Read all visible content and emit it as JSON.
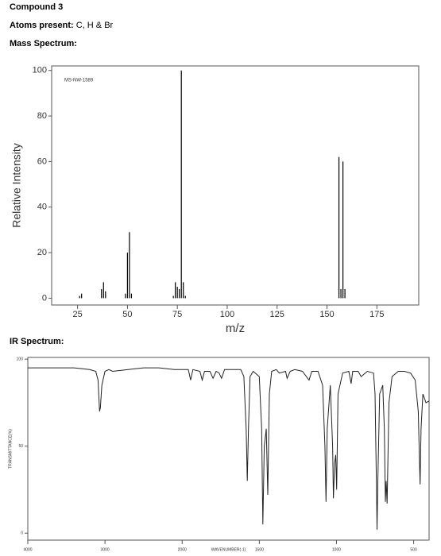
{
  "header": {
    "title": "Compound 3",
    "atoms_label": "Atoms present:",
    "atoms": "C, H & Br",
    "ms_label": "Mass Spectrum:",
    "ir_label": "IR Spectrum:"
  },
  "chart_data": [
    {
      "type": "bar",
      "annotation": "MS-NW-1589",
      "xlabel": "m/z",
      "ylabel": "Relative Intensity",
      "color": "#000000",
      "x": [
        26,
        27,
        37,
        38,
        39,
        49,
        50,
        51,
        52,
        73,
        74,
        75,
        76,
        77,
        78,
        79,
        156,
        157,
        158,
        159
      ],
      "values": [
        1,
        2,
        4,
        7,
        3,
        2,
        20,
        29,
        2,
        1,
        7,
        5,
        4,
        100,
        7,
        1,
        62,
        4,
        60,
        4
      ],
      "xlim": [
        12,
        196
      ],
      "xticks": [
        25,
        50,
        75,
        100,
        125,
        150,
        175
      ],
      "ylim": [
        -3,
        102
      ],
      "yticks": [
        0,
        20,
        40,
        60,
        80,
        100
      ]
    },
    {
      "type": "line",
      "xlabel": "WAVENUMBER(-1)",
      "ylabel": "TRANSMITTANCE(%)",
      "color": "#222222",
      "x": [
        4000,
        3800,
        3600,
        3400,
        3200,
        3120,
        3090,
        3070,
        3060,
        3040,
        3000,
        2950,
        2900,
        2700,
        2500,
        2300,
        2100,
        2000,
        1960,
        1945,
        1930,
        1885,
        1870,
        1855,
        1820,
        1800,
        1780,
        1760,
        1745,
        1725,
        1700,
        1620,
        1600,
        1585,
        1578,
        1570,
        1560,
        1540,
        1500,
        1485,
        1477,
        1468,
        1455,
        1445,
        1435,
        1420,
        1390,
        1370,
        1330,
        1320,
        1300,
        1270,
        1220,
        1178,
        1160,
        1120,
        1090,
        1075,
        1068,
        1060,
        1040,
        1025,
        1020,
        1012,
        1005,
        999,
        990,
        960,
        920,
        905,
        895,
        860,
        840,
        800,
        760,
        750,
        740,
        737,
        732,
        720,
        700,
        690,
        683,
        678,
        672,
        660,
        640,
        600,
        560,
        520,
        490,
        470,
        462,
        458,
        452,
        440,
        420,
        400
      ],
      "values": [
        95,
        95,
        95,
        95,
        94,
        93,
        88,
        70,
        72,
        85,
        93,
        94,
        93,
        94,
        95,
        95,
        94,
        94,
        94,
        88,
        94,
        93,
        88,
        93,
        93,
        89,
        93,
        92,
        89,
        94,
        94,
        94,
        90,
        60,
        30,
        60,
        90,
        93,
        90,
        60,
        5,
        50,
        60,
        22,
        80,
        93,
        94,
        92,
        93,
        89,
        93,
        94,
        93,
        88,
        93,
        93,
        85,
        50,
        18,
        60,
        85,
        50,
        20,
        40,
        45,
        25,
        80,
        92,
        93,
        86,
        93,
        93,
        90,
        93,
        92,
        80,
        20,
        2,
        30,
        80,
        85,
        60,
        18,
        30,
        17,
        75,
        90,
        93,
        93,
        92,
        88,
        70,
        40,
        28,
        60,
        80,
        75,
        76
      ],
      "xlim": [
        4000,
        400
      ],
      "xticks": [
        4000,
        3000,
        2000,
        1500,
        1000,
        500
      ],
      "ylim": [
        -4,
        101
      ],
      "yticks": [
        0,
        50,
        100
      ]
    }
  ]
}
